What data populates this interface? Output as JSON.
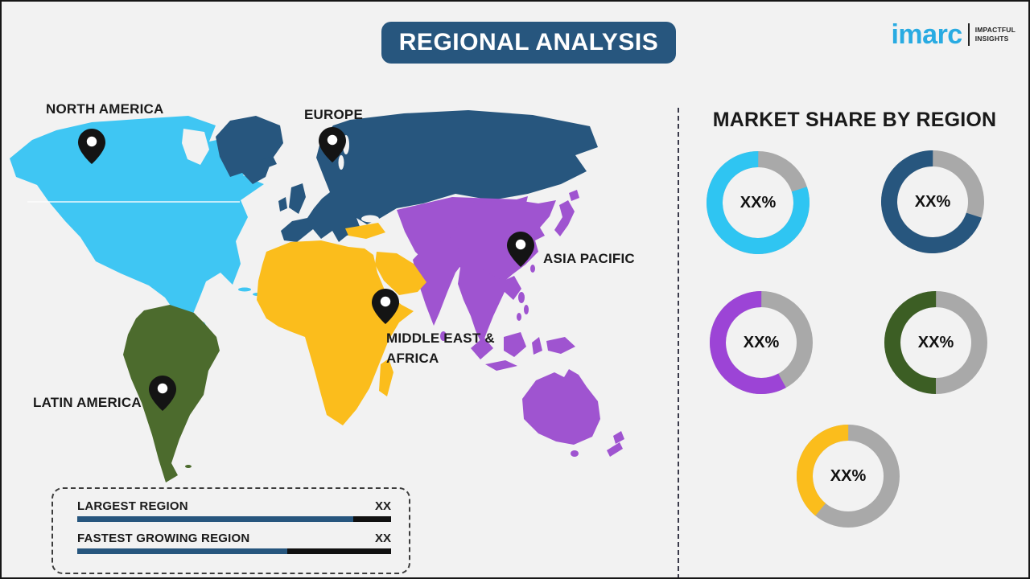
{
  "title": "REGIONAL ANALYSIS",
  "title_banner_color": "#27567E",
  "logo": {
    "brand": "imarc",
    "brand_color": "#29ABE2",
    "tagline_line1": "IMPACTFUL",
    "tagline_line2": "INSIGHTS"
  },
  "map": {
    "regions": {
      "north_america": {
        "label": "NORTH AMERICA",
        "color": "#3FC6F3"
      },
      "europe": {
        "label": "EUROPE",
        "color": "#27567E"
      },
      "asia_pacific": {
        "label": "ASIA PACIFIC",
        "color": "#9F54D0"
      },
      "middle_east_africa": {
        "label_line1": "MIDDLE EAST &",
        "label_line2": "AFRICA",
        "color": "#FBBD1C"
      },
      "latin_america": {
        "label": "LATIN AMERICA",
        "color": "#4C6B2D"
      }
    }
  },
  "legend": {
    "bar_color": "#27567E",
    "bar_remainder_color": "#111111",
    "rows": [
      {
        "label": "LARGEST REGION",
        "value": "XX",
        "bar_fill_percent": 88
      },
      {
        "label": "FASTEST GROWING REGION",
        "value": "XX",
        "bar_fill_percent": 67
      }
    ]
  },
  "market_share": {
    "heading": "MARKET SHARE BY REGION",
    "track_color": "#A9A9A9",
    "donuts": [
      {
        "region": "North America",
        "label": "XX%",
        "color": "#2FC5F2",
        "fill_percent": 80
      },
      {
        "region": "Europe",
        "label": "XX%",
        "color": "#27567E",
        "fill_percent": 70
      },
      {
        "region": "Asia Pacific",
        "label": "XX%",
        "color": "#9C44D6",
        "fill_percent": 58
      },
      {
        "region": "Latin America",
        "label": "XX%",
        "color": "#3C5E24",
        "fill_percent": 50
      },
      {
        "region": "Middle East & Africa",
        "label": "XX%",
        "color": "#FBBD1C",
        "fill_percent": 39
      }
    ]
  },
  "chart_data": {
    "type": "pie",
    "title": "MARKET SHARE BY REGION",
    "categories": [
      "North America",
      "Europe",
      "Asia Pacific",
      "Latin America",
      "Middle East & Africa"
    ],
    "values": [
      "XX%",
      "XX%",
      "XX%",
      "XX%",
      "XX%"
    ],
    "ring_fill_percents": [
      80,
      70,
      58,
      50,
      39
    ],
    "legend_position": "none",
    "notes": "Five placeholder donut gauges; numeric values masked as XX% in source graphic. Companion map legend: LARGEST REGION = XX, FASTEST GROWING REGION = XX."
  }
}
